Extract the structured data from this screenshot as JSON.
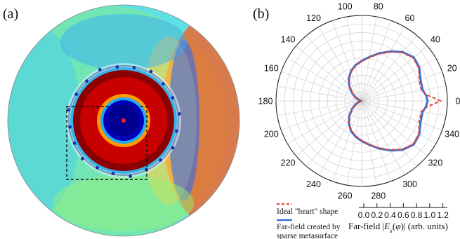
{
  "panel_a": {
    "label": "(a)"
  },
  "panel_b": {
    "label": "(b)"
  },
  "chart_data": {
    "type": "polar-line",
    "angle_ticks": [
      0,
      20,
      40,
      60,
      80,
      100,
      120,
      140,
      160,
      180,
      200,
      220,
      240,
      260,
      280,
      300,
      320,
      340
    ],
    "radial_axis": {
      "title": "Far-field |E_x(φ)| (arb. units)",
      "ticks": [
        "0.0",
        "0.2",
        "0.4",
        "0.6",
        "0.8",
        "1.0",
        "1.2"
      ],
      "range": [
        0,
        1.3
      ]
    },
    "series": [
      {
        "name": "Ideal \"heart\" shape",
        "color": "#e8442c",
        "style": "dashed",
        "angles": [
          0,
          5,
          10,
          20,
          30,
          40,
          50,
          60,
          70,
          80,
          90,
          100,
          110,
          120,
          130,
          140,
          150,
          160,
          170,
          175,
          180,
          185,
          190,
          200,
          210,
          220,
          230,
          240,
          250,
          260,
          270,
          280,
          290,
          300,
          310,
          320,
          330,
          340,
          350,
          355
        ],
        "values": [
          1.2,
          1.0,
          0.92,
          0.93,
          1.0,
          1.02,
          0.96,
          0.86,
          0.76,
          0.67,
          0.6,
          0.54,
          0.47,
          0.38,
          0.28,
          0.18,
          0.1,
          0.04,
          0.01,
          0.0,
          0.0,
          0.0,
          0.01,
          0.04,
          0.1,
          0.18,
          0.28,
          0.38,
          0.47,
          0.54,
          0.6,
          0.67,
          0.76,
          0.86,
          0.96,
          1.02,
          1.0,
          0.93,
          0.92,
          1.0
        ]
      },
      {
        "name": "Far-field created by sparse metasurface",
        "color": "#3a6fd8",
        "style": "solid",
        "angles": [
          0,
          5,
          10,
          20,
          30,
          40,
          50,
          60,
          70,
          80,
          90,
          100,
          110,
          120,
          130,
          140,
          150,
          160,
          170,
          175,
          180,
          185,
          190,
          200,
          210,
          220,
          230,
          240,
          250,
          260,
          270,
          280,
          290,
          300,
          310,
          320,
          330,
          340,
          350,
          355
        ],
        "values": [
          1.0,
          0.98,
          0.94,
          0.95,
          1.01,
          1.03,
          0.97,
          0.87,
          0.77,
          0.68,
          0.61,
          0.55,
          0.48,
          0.39,
          0.29,
          0.19,
          0.11,
          0.05,
          0.02,
          0.01,
          0.01,
          0.01,
          0.02,
          0.05,
          0.11,
          0.19,
          0.29,
          0.39,
          0.48,
          0.55,
          0.61,
          0.68,
          0.77,
          0.87,
          0.97,
          1.03,
          1.01,
          0.95,
          0.94,
          0.98
        ]
      }
    ],
    "legend": {
      "ideal_label": "Ideal \"heart\" shape",
      "created_label_line1": "Far-field created by",
      "created_label_line2": "sparse metasurface"
    }
  }
}
